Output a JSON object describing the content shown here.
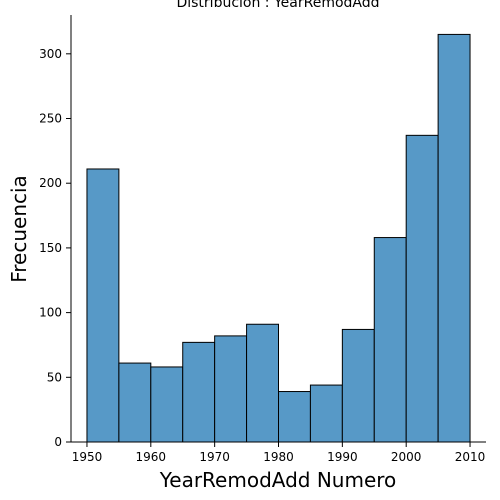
{
  "chart_data": {
    "type": "bar",
    "title": "Distribución : YearRemodAdd",
    "xlabel": "YearRemodAdd Numero",
    "ylabel": "Frecuencia",
    "bins": [
      {
        "start": 1950,
        "end": 1955,
        "count": 211
      },
      {
        "start": 1955,
        "end": 1960,
        "count": 61
      },
      {
        "start": 1960,
        "end": 1965,
        "count": 58
      },
      {
        "start": 1965,
        "end": 1970,
        "count": 77
      },
      {
        "start": 1970,
        "end": 1975,
        "count": 82
      },
      {
        "start": 1975,
        "end": 1980,
        "count": 91
      },
      {
        "start": 1980,
        "end": 1985,
        "count": 39
      },
      {
        "start": 1985,
        "end": 1990,
        "count": 44
      },
      {
        "start": 1990,
        "end": 1995,
        "count": 87
      },
      {
        "start": 1995,
        "end": 2000,
        "count": 158
      },
      {
        "start": 2000,
        "end": 2005,
        "count": 237
      },
      {
        "start": 2005,
        "end": 2010,
        "count": 315
      }
    ],
    "xlim": [
      1947.5,
      2012.5
    ],
    "ylim": [
      0,
      330
    ],
    "xticks": [
      1950,
      1960,
      1970,
      1980,
      1990,
      2000,
      2010
    ],
    "yticks": [
      0,
      50,
      100,
      150,
      200,
      250,
      300
    ],
    "bar_color": "#5799c7",
    "edge_color": "#000000",
    "grid": false
  }
}
